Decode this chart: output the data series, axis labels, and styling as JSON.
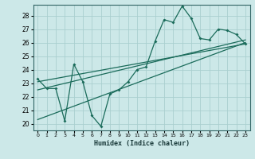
{
  "xlabel": "Humidex (Indice chaleur)",
  "bg_color": "#cce8e8",
  "line_color": "#1a6b5a",
  "grid_color": "#aacfcf",
  "xlim": [
    -0.5,
    23.5
  ],
  "ylim": [
    19.5,
    28.8
  ],
  "xticks": [
    0,
    1,
    2,
    3,
    4,
    5,
    6,
    7,
    8,
    9,
    10,
    11,
    12,
    13,
    14,
    15,
    16,
    17,
    18,
    19,
    20,
    21,
    22,
    23
  ],
  "yticks": [
    20,
    21,
    22,
    23,
    24,
    25,
    26,
    27,
    28
  ],
  "main_x": [
    0,
    1,
    2,
    3,
    4,
    5,
    6,
    7,
    8,
    9,
    10,
    11,
    12,
    13,
    14,
    15,
    16,
    17,
    18,
    19,
    20,
    21,
    22,
    23
  ],
  "main_y": [
    23.3,
    22.6,
    22.6,
    20.2,
    24.4,
    23.1,
    20.6,
    19.8,
    22.2,
    22.5,
    23.1,
    24.0,
    24.2,
    26.1,
    27.7,
    27.5,
    28.7,
    27.8,
    26.3,
    26.2,
    27.0,
    26.9,
    26.6,
    25.9
  ],
  "trend1_x": [
    0,
    23
  ],
  "trend1_y": [
    23.1,
    25.9
  ],
  "trend2_x": [
    0,
    23
  ],
  "trend2_y": [
    22.5,
    26.2
  ],
  "trend3_x": [
    0,
    23
  ],
  "trend3_y": [
    20.3,
    26.0
  ]
}
